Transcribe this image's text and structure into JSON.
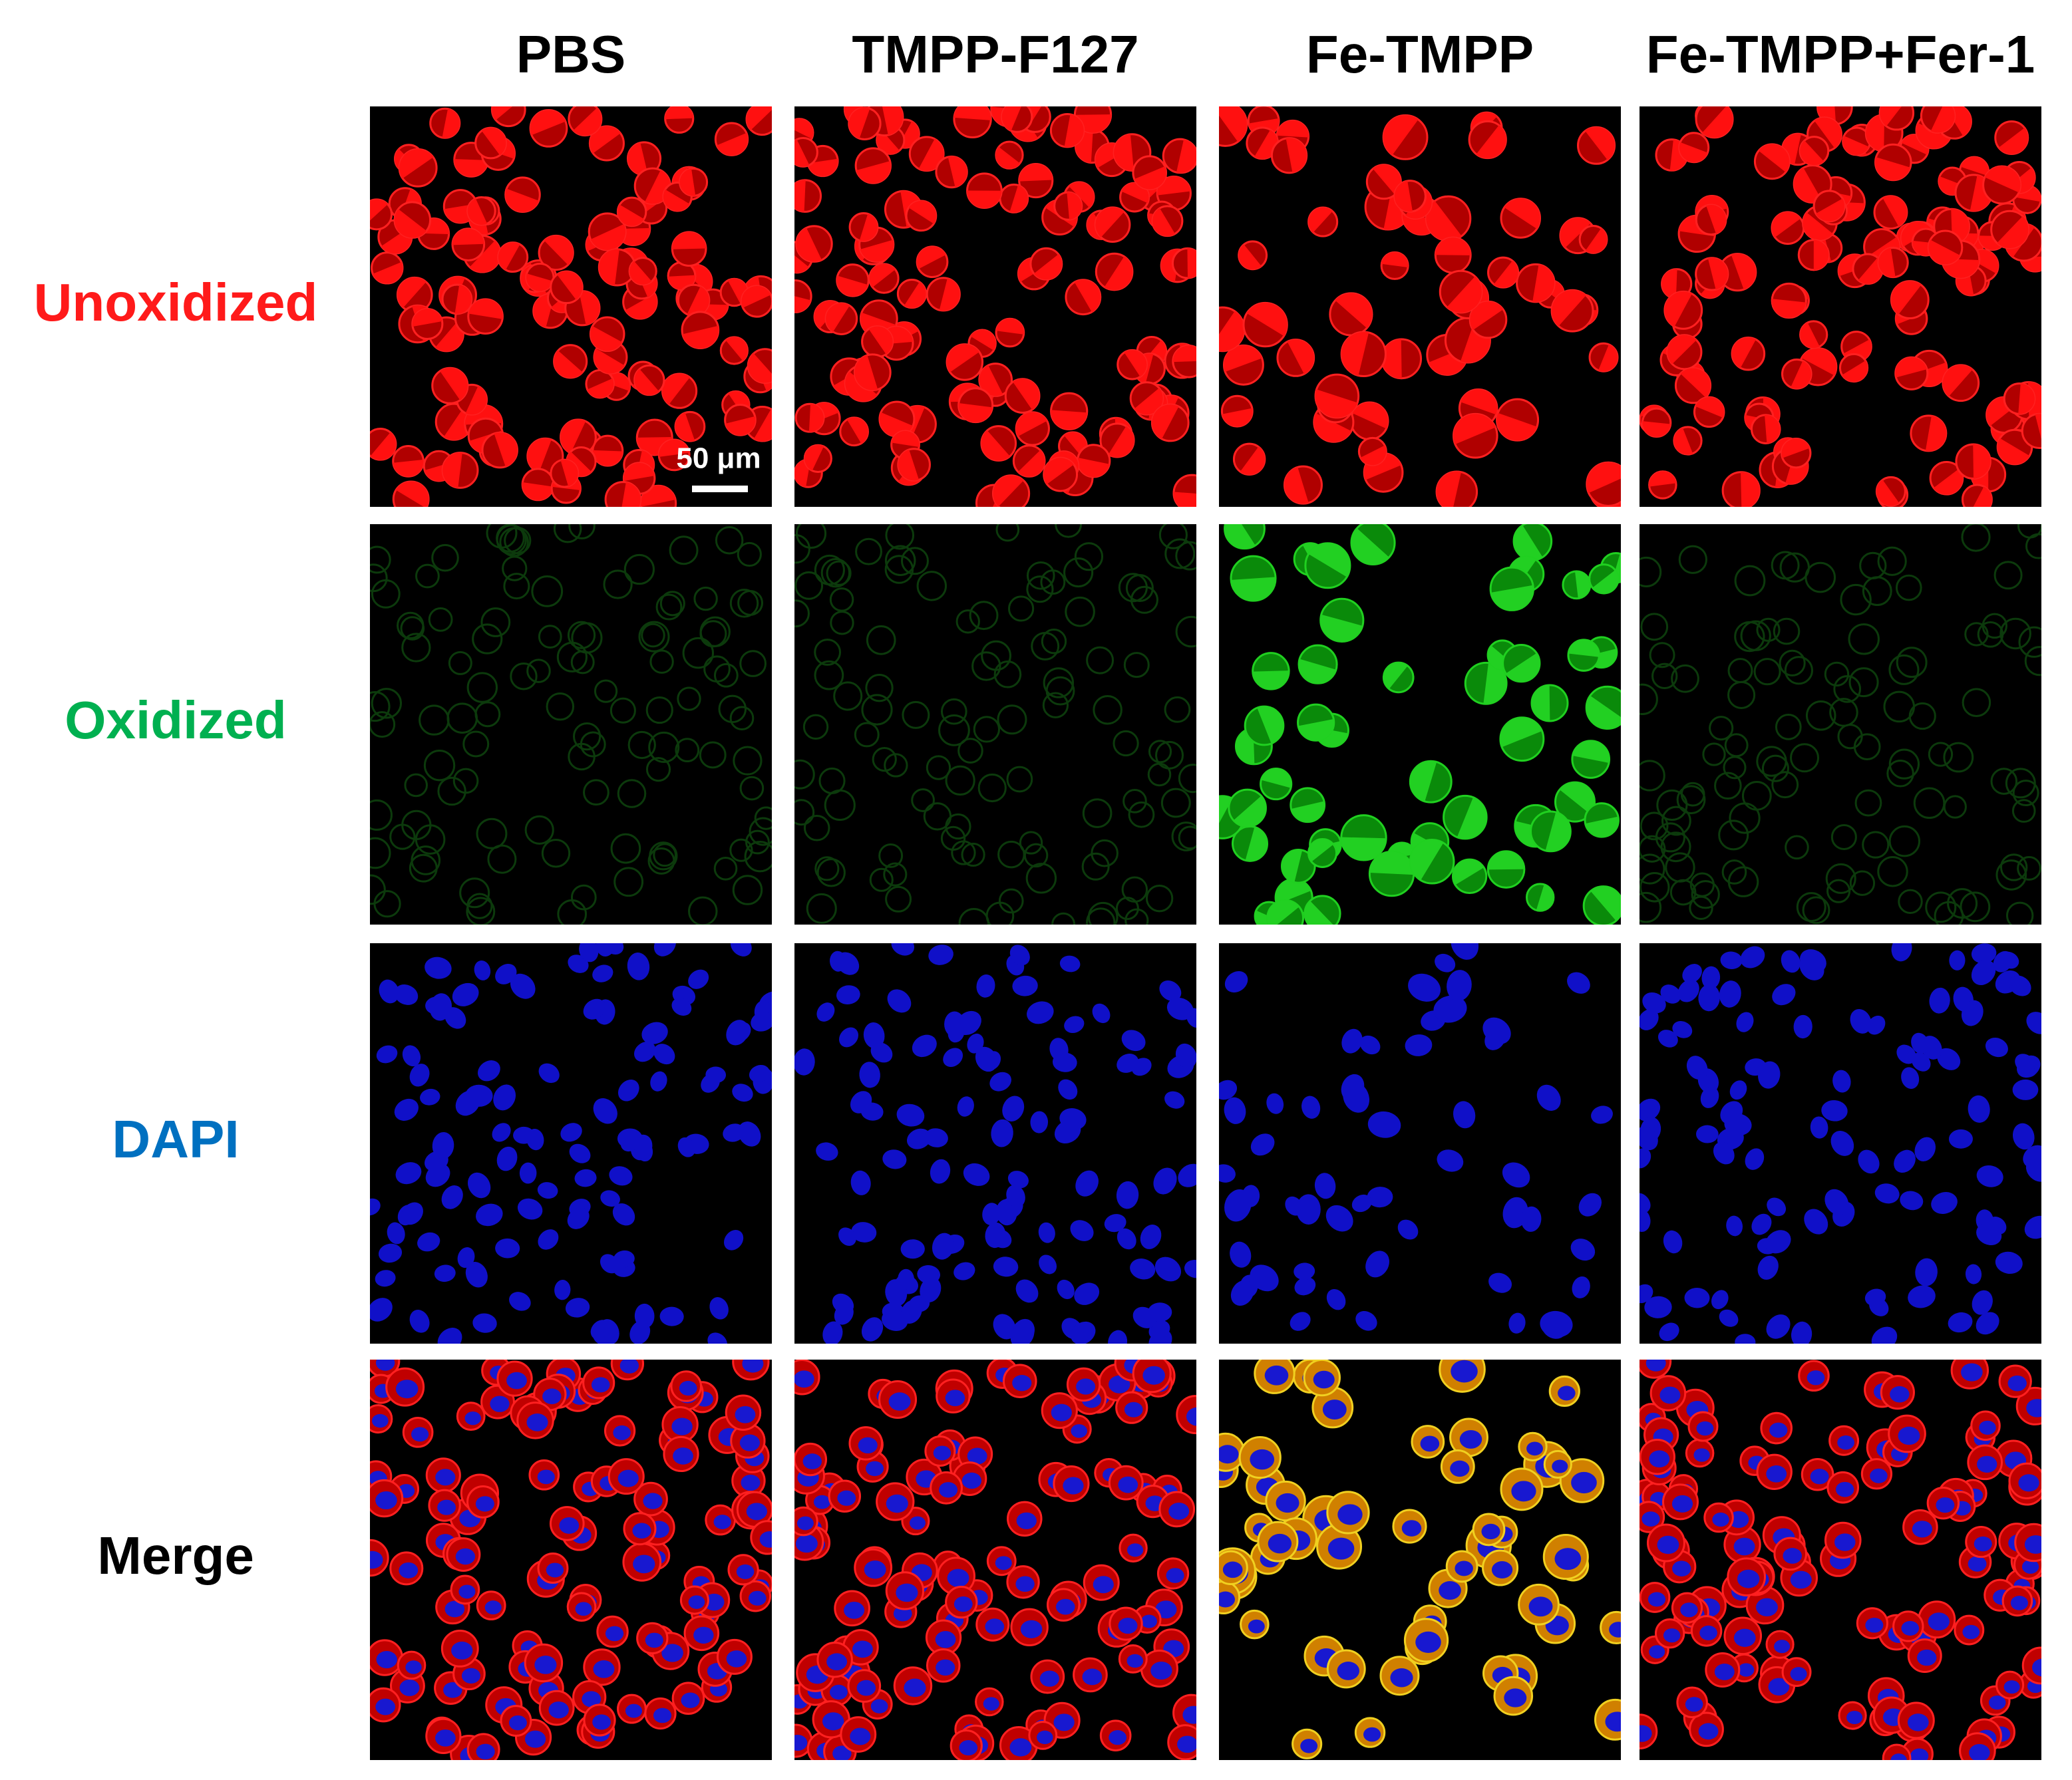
{
  "columns": [
    "PBS",
    "TMPP-F127",
    "Fe-TMPP",
    "Fe-TMPP+Fer-1"
  ],
  "rows": [
    "Unoxidized",
    "Oxidized",
    "DAPI",
    "Merge"
  ],
  "scale_bar": "50 μm"
}
